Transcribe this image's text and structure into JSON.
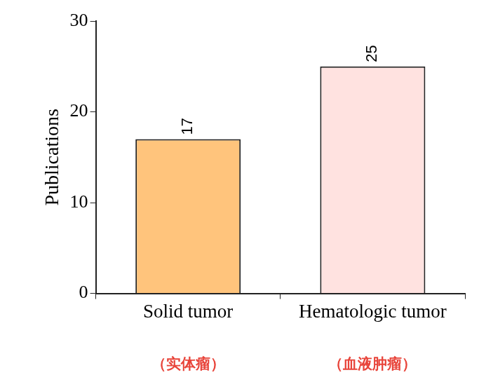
{
  "chart_data": {
    "type": "bar",
    "categories": [
      "Solid tumor",
      "Hematologic tumor"
    ],
    "values": [
      17,
      25
    ],
    "colors": [
      "#FFC47C",
      "#FFE2E0"
    ],
    "y_label": "Publications",
    "annotations": [
      "（实体瘤）",
      "（血液肿瘤）"
    ],
    "ylim": [
      0,
      30
    ],
    "yticks": [
      0,
      10,
      20,
      30
    ],
    "grid": false,
    "data_labels": true
  }
}
